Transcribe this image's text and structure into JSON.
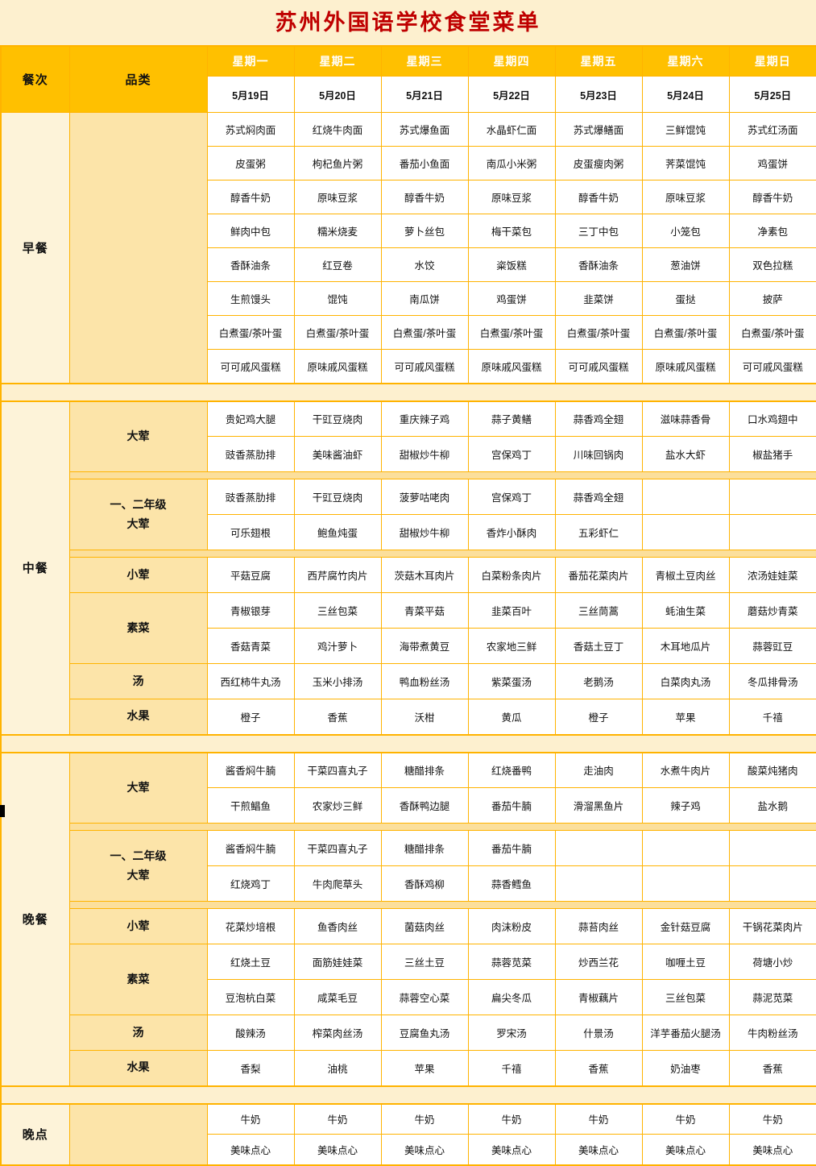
{
  "page": {
    "title": "苏州外国语学校食堂菜单"
  },
  "colors": {
    "title_red": "#BF0000",
    "header_orange": "#FFC000",
    "border_orange": "#FFB300",
    "page_cream": "#FDF0CF",
    "meal_col_bg": "#FDF3D9",
    "category_bg": "#FCE4A9",
    "divider_band_bg": "#FBDF9C",
    "cell_bg": "#FFFFFF"
  },
  "header": {
    "meal_col": "餐次",
    "category_col": "品类",
    "days": [
      "星期一",
      "星期二",
      "星期三",
      "星期四",
      "星期五",
      "星期六",
      "星期日"
    ],
    "dates": [
      "5月19日",
      "5月20日",
      "5月21日",
      "5月22日",
      "5月23日",
      "5月24日",
      "5月25日"
    ]
  },
  "sections": [
    {
      "meal": "早餐",
      "groups": [
        {
          "category": "",
          "rows": [
            [
              "苏式焖肉面",
              "红烧牛肉面",
              "苏式爆鱼面",
              "水晶虾仁面",
              "苏式爆鳝面",
              "三鲜馄饨",
              "苏式红汤面"
            ],
            [
              "皮蛋粥",
              "枸杞鱼片粥",
              "番茄小鱼面",
              "南瓜小米粥",
              "皮蛋瘦肉粥",
              "荠菜馄饨",
              "鸡蛋饼"
            ],
            [
              "醇香牛奶",
              "原味豆浆",
              "醇香牛奶",
              "原味豆浆",
              "醇香牛奶",
              "原味豆浆",
              "醇香牛奶"
            ],
            [
              "鲜肉中包",
              "糯米烧麦",
              "萝卜丝包",
              "梅干菜包",
              "三丁中包",
              "小笼包",
              "净素包"
            ],
            [
              "香酥油条",
              "红豆卷",
              "水饺",
              "粢饭糕",
              "香酥油条",
              "葱油饼",
              "双色拉糕"
            ],
            [
              "生煎馒头",
              "馄饨",
              "南瓜饼",
              "鸡蛋饼",
              "韭菜饼",
              "蛋挞",
              "披萨"
            ],
            [
              "白煮蛋/茶叶蛋",
              "白煮蛋/茶叶蛋",
              "白煮蛋/茶叶蛋",
              "白煮蛋/茶叶蛋",
              "白煮蛋/茶叶蛋",
              "白煮蛋/茶叶蛋",
              "白煮蛋/茶叶蛋"
            ],
            [
              "可可戚风蛋糕",
              "原味戚风蛋糕",
              "可可戚风蛋糕",
              "原味戚风蛋糕",
              "可可戚风蛋糕",
              "原味戚风蛋糕",
              "可可戚风蛋糕"
            ]
          ]
        }
      ]
    },
    {
      "meal": "中餐",
      "groups": [
        {
          "category": "大荤",
          "rows": [
            [
              "贵妃鸡大腿",
              "干豇豆烧肉",
              "重庆辣子鸡",
              "蒜子黄鳝",
              "蒜香鸡全翅",
              "滋味蒜香骨",
              "口水鸡翅中"
            ],
            [
              "豉香蒸肋排",
              "美味酱油虾",
              "甜椒炒牛柳",
              "宫保鸡丁",
              "川味回锅肉",
              "盐水大虾",
              "椒盐猪手"
            ]
          ]
        },
        {
          "category": "一、二年级大荤",
          "rows": [
            [
              "豉香蒸肋排",
              "干豇豆烧肉",
              "菠萝咕咾肉",
              "宫保鸡丁",
              "蒜香鸡全翅",
              "",
              ""
            ],
            [
              "可乐翅根",
              "鲍鱼炖蛋",
              "甜椒炒牛柳",
              "香炸小酥肉",
              "五彩虾仁",
              "",
              ""
            ]
          ]
        },
        {
          "category": "小荤",
          "rows": [
            [
              "平菇豆腐",
              "西芹腐竹肉片",
              "茨菇木耳肉片",
              "白菜粉条肉片",
              "番茄花菜肉片",
              "青椒土豆肉丝",
              "浓汤娃娃菜"
            ]
          ]
        },
        {
          "category": "素菜",
          "rows": [
            [
              "青椒银芽",
              "三丝包菜",
              "青菜平菇",
              "韭菜百叶",
              "三丝茼蒿",
              "蚝油生菜",
              "蘑菇炒青菜"
            ],
            [
              "香菇青菜",
              "鸡汁萝卜",
              "海带煮黄豆",
              "农家地三鲜",
              "香菇土豆丁",
              "木耳地瓜片",
              "蒜蓉豇豆"
            ]
          ]
        },
        {
          "category": "汤",
          "rows": [
            [
              "西红柿牛丸汤",
              "玉米小排汤",
              "鸭血粉丝汤",
              "紫菜蛋汤",
              "老鹅汤",
              "白菜肉丸汤",
              "冬瓜排骨汤"
            ]
          ]
        },
        {
          "category": "水果",
          "rows": [
            [
              "橙子",
              "香蕉",
              "沃柑",
              "黄瓜",
              "橙子",
              "苹果",
              "千禧"
            ]
          ]
        }
      ]
    },
    {
      "meal": "晚餐",
      "groups": [
        {
          "category": "大荤",
          "rows": [
            [
              "酱香焖牛腩",
              "干菜四喜丸子",
              "糖醋排条",
              "红烧番鸭",
              "走油肉",
              "水煮牛肉片",
              "酸菜炖猪肉"
            ],
            [
              "干煎鲳鱼",
              "农家炒三鲜",
              "香酥鸭边腿",
              "番茄牛腩",
              "滑溜黑鱼片",
              "辣子鸡",
              "盐水鹅"
            ]
          ]
        },
        {
          "category": "一、二年级大荤",
          "rows": [
            [
              "酱香焖牛腩",
              "干菜四喜丸子",
              "糖醋排条",
              "番茄牛腩",
              "",
              "",
              ""
            ],
            [
              "红烧鸡丁",
              "牛肉爬草头",
              "香酥鸡柳",
              "蒜香鳕鱼",
              "",
              "",
              ""
            ]
          ]
        },
        {
          "category": "小荤",
          "rows": [
            [
              "花菜炒培根",
              "鱼香肉丝",
              "菌菇肉丝",
              "肉沫粉皮",
              "蒜苔肉丝",
              "金针菇豆腐",
              "干锅花菜肉片"
            ]
          ]
        },
        {
          "category": "素菜",
          "rows": [
            [
              "红烧土豆",
              "面筋娃娃菜",
              "三丝土豆",
              "蒜蓉苋菜",
              "炒西兰花",
              "咖喱土豆",
              "荷塘小炒"
            ],
            [
              "豆泡杭白菜",
              "咸菜毛豆",
              "蒜蓉空心菜",
              "扁尖冬瓜",
              "青椒藕片",
              "三丝包菜",
              "蒜泥苋菜"
            ]
          ]
        },
        {
          "category": "汤",
          "rows": [
            [
              "酸辣汤",
              "榨菜肉丝汤",
              "豆腐鱼丸汤",
              "罗宋汤",
              "什景汤",
              "洋芋番茄火腿汤",
              "牛肉粉丝汤"
            ]
          ]
        },
        {
          "category": "水果",
          "rows": [
            [
              "香梨",
              "油桃",
              "苹果",
              "千禧",
              "香蕉",
              "奶油枣",
              "香蕉"
            ]
          ]
        }
      ]
    },
    {
      "meal": "晚点",
      "groups": [
        {
          "category": "",
          "rows": [
            [
              "牛奶",
              "牛奶",
              "牛奶",
              "牛奶",
              "牛奶",
              "牛奶",
              "牛奶"
            ],
            [
              "美味点心",
              "美味点心",
              "美味点心",
              "美味点心",
              "美味点心",
              "美味点心",
              "美味点心"
            ]
          ]
        }
      ]
    }
  ]
}
